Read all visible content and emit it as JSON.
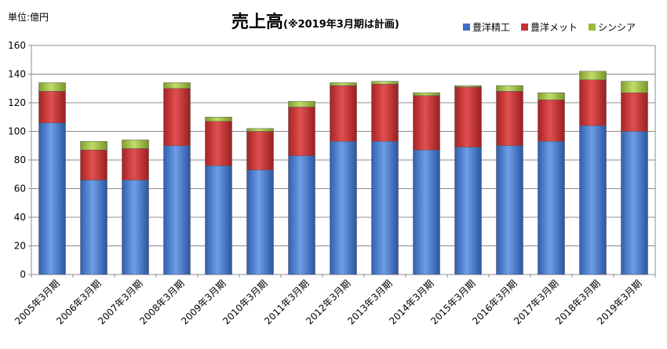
{
  "unit_label": "単位:億円",
  "title": "売上高",
  "subtitle": "(※2019年3月期は計画)",
  "legend": [
    {
      "label": "豊洋精工",
      "color": "#3a6fc4"
    },
    {
      "label": "豊洋メット",
      "color": "#c63232"
    },
    {
      "label": "シンシア",
      "color": "#9bbb3a"
    }
  ],
  "chart_data": {
    "type": "bar",
    "stacked": true,
    "categories": [
      "2005年3月期",
      "2006年3月期",
      "2007年3月期",
      "2008年3月期",
      "2009年3月期",
      "2010年3月期",
      "2011年3月期",
      "2012年3月期",
      "2013年3月期",
      "2014年3月期",
      "2015年3月期",
      "2016年3月期",
      "2017年3月期",
      "2018年3月期",
      "2019年3月期"
    ],
    "series": [
      {
        "name": "豊洋精工",
        "values": [
          106,
          66,
          66,
          90,
          76,
          73,
          83,
          93,
          93,
          87,
          89,
          90,
          93,
          104,
          100
        ]
      },
      {
        "name": "豊洋メット",
        "values": [
          22,
          21,
          22,
          40,
          31,
          27,
          34,
          39,
          40,
          38,
          42,
          38,
          29,
          32,
          27
        ]
      },
      {
        "name": "シンシア",
        "values": [
          6,
          6,
          6,
          4,
          3,
          2,
          4,
          2,
          2,
          2,
          1,
          4,
          5,
          6,
          8
        ]
      }
    ],
    "ylim": [
      0,
      160
    ],
    "yticks": [
      0,
      20,
      40,
      60,
      80,
      100,
      120,
      140,
      160
    ],
    "grid": true,
    "legend_position": "top-right"
  }
}
